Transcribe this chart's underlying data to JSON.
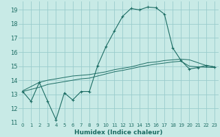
{
  "bg_color": "#c8eae6",
  "grid_color": "#99cccc",
  "line_color": "#1a6b62",
  "xlabel": "Humidex (Indice chaleur)",
  "xlim": [
    -0.5,
    23.5
  ],
  "ylim": [
    11,
    19.6
  ],
  "xticks": [
    0,
    1,
    2,
    3,
    4,
    5,
    6,
    7,
    8,
    9,
    10,
    11,
    12,
    13,
    14,
    15,
    16,
    17,
    18,
    19,
    20,
    21,
    22,
    23
  ],
  "yticks": [
    11,
    12,
    13,
    14,
    15,
    16,
    17,
    18,
    19
  ],
  "series1_x": [
    0,
    1,
    2,
    3,
    4,
    5,
    6,
    7,
    8,
    9,
    10,
    11,
    12,
    13,
    14,
    15,
    16,
    17,
    18,
    19,
    20,
    21,
    22,
    23
  ],
  "series1_y": [
    13.2,
    12.5,
    13.85,
    12.5,
    11.2,
    13.1,
    12.6,
    13.2,
    13.2,
    15.05,
    16.4,
    17.5,
    18.55,
    19.1,
    19.0,
    19.2,
    19.15,
    18.7,
    16.3,
    15.4,
    14.8,
    14.9,
    15.05,
    14.95
  ],
  "series2_x": [
    0,
    2,
    3,
    5,
    6,
    7,
    8,
    9,
    10,
    11,
    12,
    13,
    14,
    15,
    16,
    17,
    18,
    19,
    20,
    21,
    22,
    23
  ],
  "series2_y": [
    13.25,
    13.85,
    14.0,
    14.2,
    14.3,
    14.35,
    14.4,
    14.5,
    14.6,
    14.75,
    14.85,
    14.95,
    15.1,
    15.25,
    15.3,
    15.4,
    15.45,
    15.5,
    15.45,
    15.25,
    15.05,
    14.95
  ],
  "series3_x": [
    0,
    2,
    3,
    5,
    6,
    7,
    8,
    9,
    10,
    11,
    12,
    13,
    14,
    15,
    16,
    17,
    18,
    19,
    20,
    21,
    22,
    23
  ],
  "series3_y": [
    13.2,
    13.5,
    13.7,
    13.9,
    14.0,
    14.1,
    14.15,
    14.3,
    14.45,
    14.6,
    14.7,
    14.82,
    14.95,
    15.05,
    15.15,
    15.22,
    15.3,
    15.35,
    15.0,
    14.95,
    14.92,
    14.9
  ]
}
